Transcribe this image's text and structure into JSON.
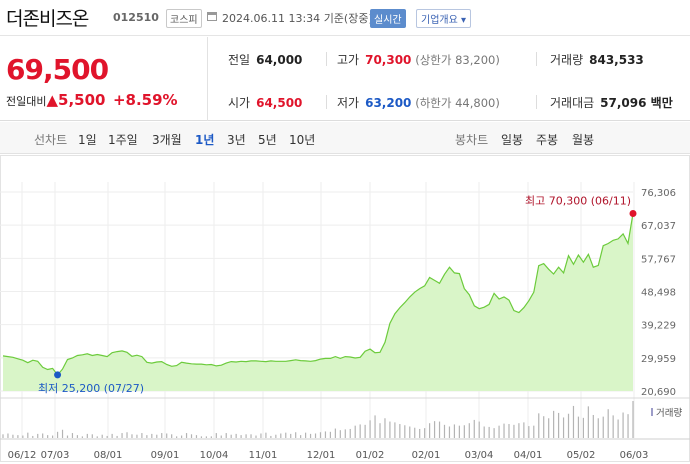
{
  "header": {
    "name": "더존비즈온",
    "code": "012510",
    "market": "코스피",
    "datetime": "2024.06.11 13:34",
    "basis": "기준(장중)",
    "live": "실시간",
    "company_info": "기업개요 ▾"
  },
  "price": {
    "current": "69,500",
    "change_label": "전일대비",
    "change": "▲5,500",
    "change_pct": "+8.59%"
  },
  "stats": {
    "prev_label": "전일",
    "prev": "64,000",
    "high_label": "고가",
    "high": "70,300",
    "high_limit": "(상한가 83,200)",
    "volume_label": "거래량",
    "volume": "843,533",
    "open_label": "시가",
    "open": "64,500",
    "low_label": "저가",
    "low": "63,200",
    "low_limit": "(하한가 44,800)",
    "amount_label": "거래대금",
    "amount": "57,096 백만"
  },
  "period_bar": {
    "line_label": "선차트",
    "line_periods": [
      "1일",
      "1주일",
      "3개월",
      "1년",
      "3년",
      "5년",
      "10년"
    ],
    "selected": "1년",
    "candle_label": "봉차트",
    "candle_periods": [
      "일봉",
      "주봉",
      "월봉"
    ]
  },
  "chart_data": {
    "type": "area",
    "y_ticks": [
      "76,306",
      "67,037",
      "57,767",
      "48,498",
      "39,229",
      "29,959",
      "20,690"
    ],
    "ylim": [
      20690,
      76306
    ],
    "x_ticks": [
      "06/12",
      "07/03",
      "08/01",
      "09/01",
      "10/04",
      "11/01",
      "12/01",
      "01/02",
      "02/01",
      "03/04",
      "04/01",
      "05/02",
      "06/03"
    ],
    "max_label": "최고 70,300 (06/11)",
    "min_label": "최저 25,200 (07/27)",
    "volume_label": "거래량",
    "accent": "#6ccb3c",
    "fill": "#d9f5c8",
    "values": [
      30500,
      30300,
      30100,
      29700,
      29300,
      28600,
      29300,
      29000,
      27300,
      26700,
      27000,
      25200,
      26800,
      29500,
      29900,
      30600,
      30800,
      31100,
      30600,
      30900,
      30600,
      30300,
      31400,
      31700,
      31900,
      31500,
      30400,
      30700,
      30300,
      28700,
      28500,
      28800,
      28900,
      28100,
      27600,
      27800,
      28700,
      28500,
      28300,
      28200,
      28200,
      28000,
      28100,
      27700,
      27900,
      28500,
      28900,
      28800,
      29000,
      28900,
      29100,
      29100,
      29000,
      28900,
      29100,
      29000,
      29000,
      29000,
      29200,
      29400,
      29200,
      29100,
      29000,
      29200,
      29600,
      29800,
      29800,
      30300,
      29800,
      30300,
      30200,
      29900,
      30100,
      31800,
      32400,
      31400,
      31500,
      34300,
      39600,
      42300,
      44000,
      45400,
      47000,
      48300,
      49300,
      50100,
      52400,
      51600,
      50800,
      53300,
      55300,
      53700,
      53500,
      49300,
      47600,
      44500,
      43700,
      44100,
      44900,
      48000,
      46400,
      47000,
      46100,
      43200,
      42600,
      44000,
      45900,
      48300,
      55700,
      56300,
      54700,
      53400,
      55300,
      53700,
      58500,
      56100,
      58700,
      56700,
      58900,
      55300,
      55800,
      61300,
      61900,
      62800,
      63200,
      64600,
      61900,
      70300
    ],
    "volume": [
      9,
      11,
      8,
      7,
      6,
      13,
      5,
      10,
      11,
      7,
      6,
      15,
      20,
      6,
      12,
      7,
      4,
      10,
      9,
      4,
      8,
      5,
      10,
      5,
      12,
      14,
      9,
      8,
      12,
      7,
      10,
      8,
      12,
      11,
      9,
      4,
      6,
      12,
      9,
      7,
      4,
      4,
      4,
      12,
      6,
      12,
      8,
      10,
      7,
      9,
      9,
      6,
      11,
      13,
      5,
      8,
      11,
      13,
      10,
      14,
      7,
      13,
      10,
      11,
      14,
      16,
      15,
      23,
      19,
      21,
      22,
      30,
      33,
      32,
      43,
      55,
      36,
      48,
      40,
      38,
      34,
      31,
      28,
      25,
      22,
      24,
      36,
      41,
      40,
      32,
      28,
      33,
      30,
      31,
      36,
      44,
      40,
      28,
      27,
      24,
      30,
      35,
      34,
      32,
      36,
      38,
      29,
      30,
      60,
      53,
      48,
      66,
      61,
      50,
      59,
      78,
      52,
      49,
      77,
      56,
      48,
      52,
      70,
      55,
      45,
      62,
      58,
      90
    ]
  }
}
